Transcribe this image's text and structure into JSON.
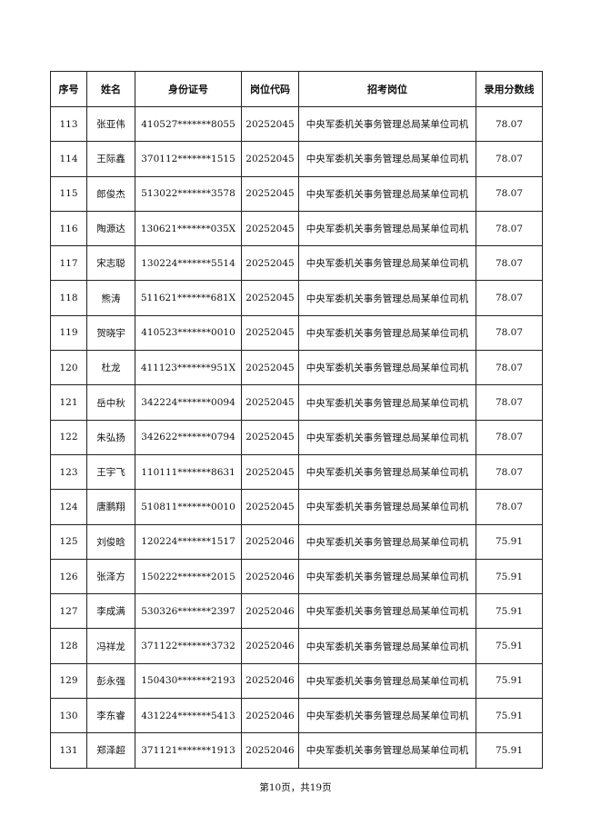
{
  "table": {
    "headers": [
      "序号",
      "姓名",
      "身份证号",
      "岗位代码",
      "招考岗位",
      "录用分数线"
    ],
    "rows": [
      [
        "113",
        "张亚伟",
        "410527*******8055",
        "20252045",
        "中央军委机关事务管理总局某单位司机",
        "78.07"
      ],
      [
        "114",
        "王际鑫",
        "370112*******1515",
        "20252045",
        "中央军委机关事务管理总局某单位司机",
        "78.07"
      ],
      [
        "115",
        "郎俊杰",
        "513022*******3578",
        "20252045",
        "中央军委机关事务管理总局某单位司机",
        "78.07"
      ],
      [
        "116",
        "陶源达",
        "130621*******035X",
        "20252045",
        "中央军委机关事务管理总局某单位司机",
        "78.07"
      ],
      [
        "117",
        "宋志聪",
        "130224*******5514",
        "20252045",
        "中央军委机关事务管理总局某单位司机",
        "78.07"
      ],
      [
        "118",
        "熊涛",
        "511621*******681X",
        "20252045",
        "中央军委机关事务管理总局某单位司机",
        "78.07"
      ],
      [
        "119",
        "贺晓宇",
        "410523*******0010",
        "20252045",
        "中央军委机关事务管理总局某单位司机",
        "78.07"
      ],
      [
        "120",
        "杜龙",
        "411123*******951X",
        "20252045",
        "中央军委机关事务管理总局某单位司机",
        "78.07"
      ],
      [
        "121",
        "岳中秋",
        "342224*******0094",
        "20252045",
        "中央军委机关事务管理总局某单位司机",
        "78.07"
      ],
      [
        "122",
        "朱弘扬",
        "342622*******0794",
        "20252045",
        "中央军委机关事务管理总局某单位司机",
        "78.07"
      ],
      [
        "123",
        "王宇飞",
        "110111*******8631",
        "20252045",
        "中央军委机关事务管理总局某单位司机",
        "78.07"
      ],
      [
        "124",
        "唐鹏翔",
        "510811*******0010",
        "20252045",
        "中央军委机关事务管理总局某单位司机",
        "78.07"
      ],
      [
        "125",
        "刘俊晗",
        "120224*******1517",
        "20252046",
        "中央军委机关事务管理总局某单位司机",
        "75.91"
      ],
      [
        "126",
        "张泽方",
        "150222*******2015",
        "20252046",
        "中央军委机关事务管理总局某单位司机",
        "75.91"
      ],
      [
        "127",
        "李成满",
        "530326*******2397",
        "20252046",
        "中央军委机关事务管理总局某单位司机",
        "75.91"
      ],
      [
        "128",
        "冯祥龙",
        "371122*******3732",
        "20252046",
        "中央军委机关事务管理总局某单位司机",
        "75.91"
      ],
      [
        "129",
        "彭永强",
        "150430*******2193",
        "20252046",
        "中央军委机关事务管理总局某单位司机",
        "75.91"
      ],
      [
        "130",
        "李东睿",
        "431224*******5413",
        "20252046",
        "中央军委机关事务管理总局某单位司机",
        "75.91"
      ],
      [
        "131",
        "郑泽超",
        "371121*******1913",
        "20252046",
        "中央军委机关事务管理总局某单位司机",
        "75.91"
      ]
    ]
  },
  "footer": {
    "page_label": "第10页，共19页"
  }
}
